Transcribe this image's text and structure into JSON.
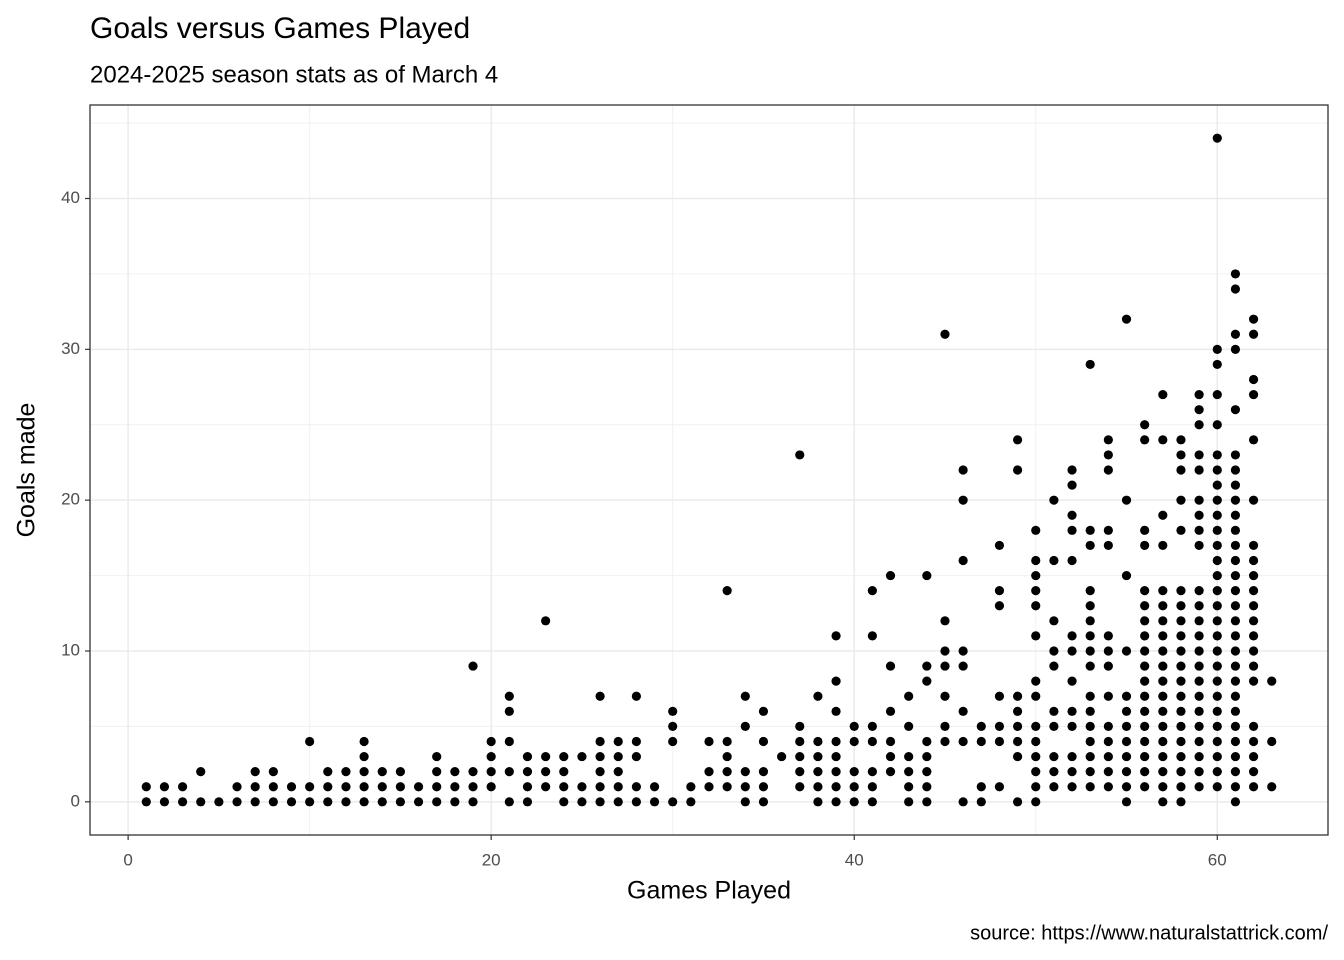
{
  "chart_data": {
    "type": "scatter",
    "title": "Goals versus Games Played",
    "subtitle": "2024-2025 season stats as of March 4",
    "x_label": "Games Played",
    "y_label": "Goals made",
    "caption": "source: https://www.naturalstattrick.com/",
    "color": "#000000",
    "grid": true,
    "xlim": [
      -2.1,
      66.1
    ],
    "ylim": [
      -2.2,
      46.2
    ],
    "xticks": [
      0,
      20,
      40,
      60
    ],
    "yticks": [
      0,
      10,
      20,
      30,
      40
    ],
    "xminor": [
      10,
      30,
      50
    ],
    "yminor": [
      5,
      15,
      25,
      35,
      45
    ],
    "x": [
      1,
      1,
      2,
      2,
      3,
      3,
      4,
      4,
      5,
      6,
      6,
      7,
      7,
      7,
      8,
      8,
      8,
      9,
      9,
      10,
      10,
      10,
      11,
      11,
      11,
      12,
      12,
      12,
      13,
      13,
      13,
      13,
      13,
      14,
      14,
      14,
      15,
      15,
      15,
      16,
      16,
      17,
      17,
      17,
      17,
      18,
      18,
      18,
      19,
      19,
      19,
      19,
      20,
      20,
      20,
      20,
      21,
      21,
      21,
      21,
      21,
      22,
      22,
      22,
      22,
      23,
      23,
      23,
      23,
      24,
      24,
      24,
      24,
      25,
      25,
      25,
      26,
      26,
      26,
      26,
      26,
      26,
      27,
      27,
      27,
      27,
      27,
      28,
      28,
      28,
      28,
      28,
      29,
      29,
      30,
      30,
      30,
      30,
      31,
      31,
      32,
      32,
      32,
      33,
      33,
      33,
      33,
      33,
      34,
      34,
      34,
      34,
      34,
      35,
      35,
      35,
      35,
      35,
      36,
      37,
      37,
      37,
      37,
      37,
      37,
      38,
      38,
      38,
      38,
      38,
      38,
      39,
      39,
      39,
      39,
      39,
      39,
      39,
      39,
      40,
      40,
      40,
      40,
      40,
      41,
      41,
      41,
      41,
      41,
      41,
      41,
      42,
      42,
      42,
      42,
      42,
      42,
      43,
      43,
      43,
      43,
      43,
      43,
      44,
      44,
      44,
      44,
      44,
      44,
      44,
      44,
      45,
      45,
      45,
      45,
      45,
      45,
      45,
      46,
      46,
      46,
      46,
      46,
      46,
      46,
      46,
      47,
      47,
      47,
      47,
      48,
      48,
      48,
      48,
      48,
      48,
      48,
      49,
      49,
      49,
      49,
      49,
      49,
      49,
      49,
      50,
      50,
      50,
      50,
      50,
      50,
      50,
      50,
      50,
      50,
      50,
      50,
      50,
      50,
      51,
      51,
      51,
      51,
      51,
      51,
      51,
      51,
      51,
      51,
      52,
      52,
      52,
      52,
      52,
      52,
      52,
      52,
      52,
      52,
      52,
      52,
      52,
      53,
      53,
      53,
      53,
      53,
      53,
      53,
      53,
      53,
      53,
      53,
      53,
      53,
      53,
      53,
      53,
      54,
      54,
      54,
      54,
      54,
      54,
      54,
      54,
      54,
      54,
      54,
      54,
      54,
      54,
      55,
      55,
      55,
      55,
      55,
      55,
      55,
      55,
      55,
      55,
      55,
      55,
      56,
      56,
      56,
      56,
      56,
      56,
      56,
      56,
      56,
      56,
      56,
      56,
      56,
      56,
      56,
      56,
      56,
      56,
      57,
      57,
      57,
      57,
      57,
      57,
      57,
      57,
      57,
      57,
      57,
      57,
      57,
      57,
      57,
      57,
      57,
      57,
      57,
      58,
      58,
      58,
      58,
      58,
      58,
      58,
      58,
      58,
      58,
      58,
      58,
      58,
      58,
      58,
      58,
      58,
      58,
      58,
      58,
      59,
      59,
      59,
      59,
      59,
      59,
      59,
      59,
      59,
      59,
      59,
      59,
      59,
      59,
      59,
      59,
      59,
      59,
      59,
      59,
      59,
      59,
      59,
      60,
      60,
      60,
      60,
      60,
      60,
      60,
      60,
      60,
      60,
      60,
      60,
      60,
      60,
      60,
      60,
      60,
      60,
      60,
      60,
      60,
      60,
      60,
      60,
      60,
      60,
      60,
      60,
      61,
      61,
      61,
      61,
      61,
      61,
      61,
      61,
      61,
      61,
      61,
      61,
      61,
      61,
      61,
      61,
      61,
      61,
      61,
      61,
      61,
      61,
      61,
      61,
      61,
      61,
      61,
      61,
      61,
      62,
      62,
      62,
      62,
      62,
      62,
      62,
      62,
      62,
      62,
      62,
      62,
      62,
      62,
      62,
      62,
      62,
      62,
      62,
      62,
      62,
      63,
      63,
      63
    ],
    "values": [
      0,
      1,
      0,
      1,
      0,
      1,
      0,
      2,
      0,
      0,
      1,
      0,
      1,
      2,
      0,
      1,
      2,
      0,
      1,
      0,
      1,
      4,
      0,
      1,
      2,
      0,
      1,
      2,
      0,
      1,
      2,
      3,
      4,
      0,
      1,
      2,
      0,
      1,
      2,
      0,
      1,
      0,
      1,
      2,
      3,
      0,
      1,
      2,
      0,
      1,
      2,
      9,
      1,
      2,
      3,
      4,
      0,
      2,
      4,
      6,
      7,
      0,
      1,
      2,
      3,
      1,
      2,
      3,
      12,
      0,
      1,
      2,
      3,
      0,
      1,
      3,
      0,
      1,
      2,
      3,
      4,
      7,
      0,
      1,
      2,
      3,
      4,
      0,
      1,
      3,
      4,
      7,
      0,
      1,
      0,
      4,
      5,
      6,
      0,
      1,
      1,
      2,
      4,
      1,
      2,
      3,
      4,
      14,
      0,
      1,
      2,
      5,
      7,
      0,
      1,
      2,
      4,
      6,
      3,
      1,
      2,
      3,
      4,
      5,
      23,
      0,
      1,
      2,
      3,
      4,
      7,
      0,
      1,
      2,
      3,
      4,
      6,
      8,
      11,
      0,
      1,
      2,
      4,
      5,
      0,
      1,
      2,
      4,
      5,
      11,
      14,
      2,
      3,
      4,
      6,
      9,
      15,
      0,
      1,
      2,
      3,
      5,
      7,
      0,
      1,
      2,
      3,
      4,
      8,
      9,
      15,
      4,
      5,
      7,
      9,
      10,
      12,
      31,
      0,
      4,
      6,
      9,
      10,
      16,
      20,
      22,
      0,
      1,
      4,
      5,
      1,
      4,
      5,
      7,
      13,
      14,
      17,
      0,
      3,
      4,
      5,
      6,
      7,
      22,
      24,
      0,
      1,
      2,
      3,
      4,
      5,
      7,
      8,
      11,
      13,
      14,
      15,
      16,
      18,
      1,
      2,
      3,
      5,
      6,
      9,
      10,
      12,
      16,
      20,
      1,
      2,
      3,
      5,
      6,
      8,
      10,
      11,
      16,
      18,
      19,
      21,
      22,
      1,
      2,
      3,
      4,
      5,
      6,
      7,
      9,
      10,
      11,
      12,
      13,
      14,
      17,
      18,
      29,
      1,
      2,
      3,
      4,
      5,
      7,
      9,
      10,
      11,
      17,
      18,
      22,
      23,
      24,
      0,
      1,
      2,
      3,
      4,
      5,
      6,
      7,
      10,
      15,
      20,
      32,
      1,
      2,
      3,
      4,
      5,
      6,
      7,
      8,
      9,
      10,
      11,
      12,
      13,
      14,
      17,
      18,
      24,
      25,
      0,
      1,
      2,
      3,
      4,
      5,
      6,
      7,
      8,
      9,
      10,
      11,
      12,
      13,
      14,
      17,
      19,
      24,
      27,
      0,
      1,
      2,
      3,
      4,
      5,
      6,
      7,
      8,
      9,
      10,
      11,
      12,
      13,
      14,
      18,
      20,
      22,
      23,
      24,
      1,
      2,
      3,
      4,
      5,
      6,
      7,
      8,
      9,
      10,
      11,
      12,
      13,
      14,
      17,
      18,
      19,
      20,
      22,
      23,
      25,
      26,
      27,
      1,
      2,
      3,
      4,
      5,
      6,
      7,
      8,
      9,
      10,
      11,
      12,
      13,
      14,
      15,
      16,
      17,
      18,
      19,
      20,
      21,
      22,
      23,
      25,
      27,
      29,
      30,
      44,
      0,
      1,
      2,
      3,
      4,
      5,
      6,
      7,
      8,
      9,
      10,
      11,
      12,
      13,
      14,
      15,
      16,
      17,
      18,
      19,
      20,
      21,
      22,
      23,
      26,
      30,
      31,
      34,
      35,
      1,
      2,
      3,
      4,
      5,
      8,
      9,
      10,
      11,
      12,
      13,
      14,
      15,
      16,
      17,
      20,
      24,
      27,
      28,
      31,
      32,
      1,
      4,
      8
    ]
  }
}
